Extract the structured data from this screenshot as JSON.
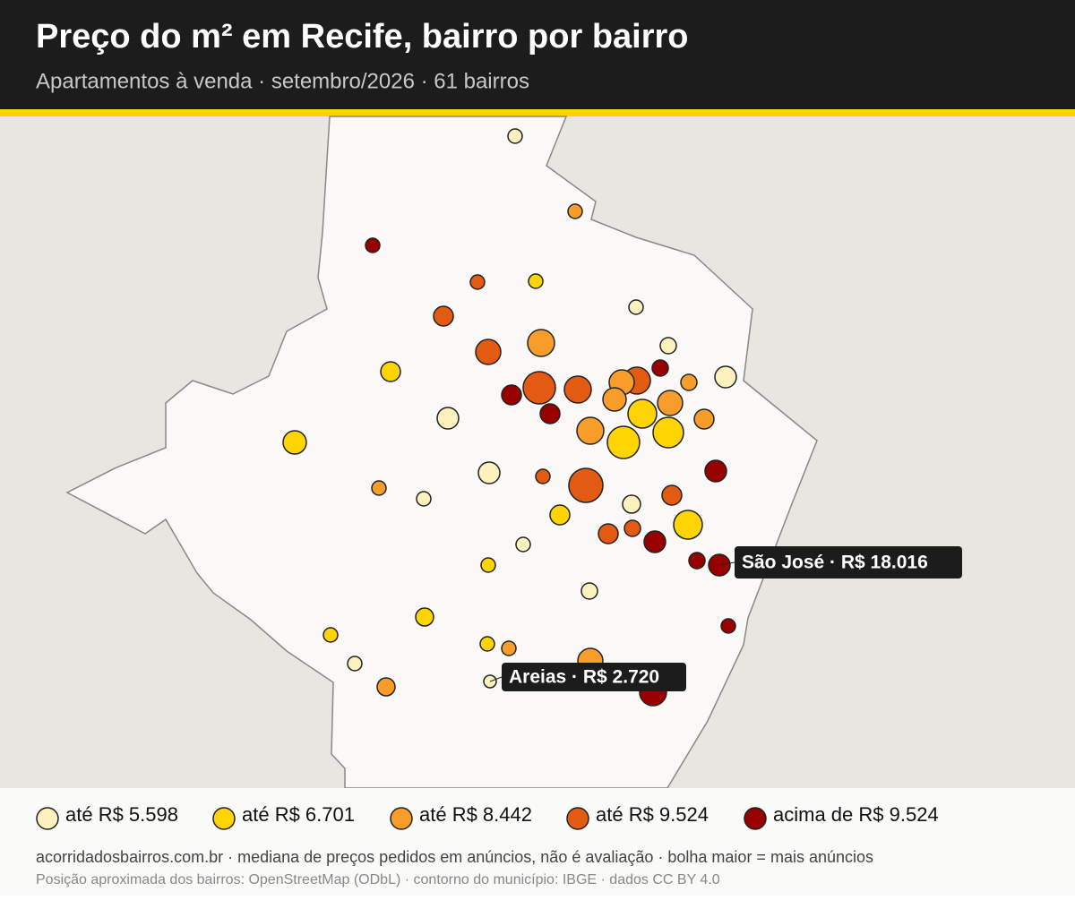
{
  "header": {
    "title": "Preço do m² em Recife, bairro por bairro",
    "subtitle": "Apartamentos à venda · setembro/2026 · 61 bairros"
  },
  "legend": [
    {
      "label": "até R$ 5.598",
      "color": "#fdf1bd"
    },
    {
      "label": "até R$ 6.701",
      "color": "#ffd400"
    },
    {
      "label": "até R$ 8.442",
      "color": "#f89d2a"
    },
    {
      "label": "até R$ 9.524",
      "color": "#e35b12"
    },
    {
      "label": "acima de R$ 9.524",
      "color": "#980000"
    }
  ],
  "annotations": [
    {
      "text": "São José · R$ 18.016"
    },
    {
      "text": "Areias · R$ 2.720"
    }
  ],
  "footer": {
    "line1": "acorridadosbairros.com.br · mediana de preços pedidos em anúncios, não é avaliação · bolha maior = mais anúncios",
    "line2": "Posição aproximada dos bairros: OpenStreetMap (ODbL) · contorno do município: IBGE · dados CC BY 4.0"
  }
}
